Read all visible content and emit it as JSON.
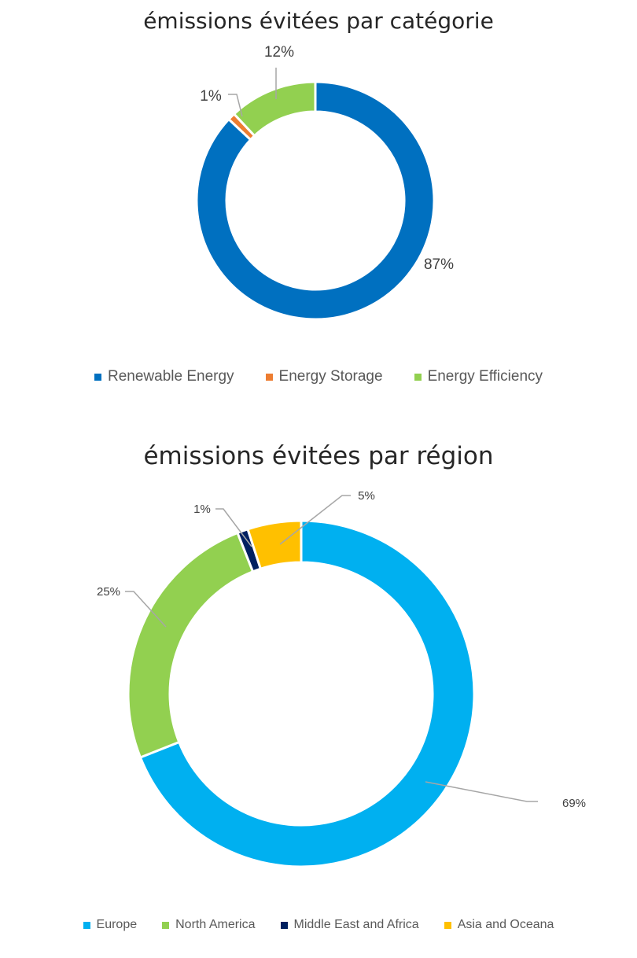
{
  "chart_data": [
    {
      "type": "pie",
      "style": "donut",
      "title": "émissions évitées par catégorie",
      "series": [
        {
          "name": "Renewable Energy",
          "value": 87,
          "label": "87%",
          "color": "#0070C0"
        },
        {
          "name": "Energy Storage",
          "value": 1,
          "label": "1%",
          "color": "#ED7D31"
        },
        {
          "name": "Energy Efficiency",
          "value": 12,
          "label": "12%",
          "color": "#92D050"
        }
      ],
      "legend": "bottom"
    },
    {
      "type": "pie",
      "style": "donut",
      "title": "émissions évitées par région",
      "series": [
        {
          "name": "Europe",
          "value": 69,
          "label": "69%",
          "color": "#00B0F0"
        },
        {
          "name": "North America",
          "value": 25,
          "label": "25%",
          "color": "#92D050"
        },
        {
          "name": "Middle East and Africa",
          "value": 1,
          "label": "1%",
          "color": "#002060"
        },
        {
          "name": "Asia and Oceana",
          "value": 5,
          "label": "5%",
          "color": "#FFC000"
        }
      ],
      "legend": "bottom"
    }
  ]
}
